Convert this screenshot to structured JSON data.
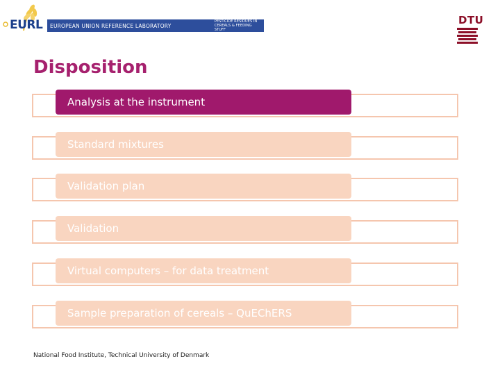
{
  "header": {
    "logo_text": "EURL",
    "banner_left": "EUROPEAN UNION REFERENCE LABORATORY",
    "banner_right_line1": "PESTICIDE RESIDUES IN",
    "banner_right_line2": "CEREALS & FEEDING STUFF",
    "dtu_text": "DTU"
  },
  "title": "Disposition",
  "items": [
    {
      "label": "Analysis at the instrument",
      "active": true
    },
    {
      "label": "Standard mixtures",
      "active": false
    },
    {
      "label": "Validation plan",
      "active": false
    },
    {
      "label": "Validation",
      "active": false
    },
    {
      "label": "Virtual computers – for data treatment",
      "active": false
    },
    {
      "label": "Sample preparation of cereals – QuEChERS",
      "active": false
    }
  ],
  "footer": "National Food Institute, Technical University of Denmark",
  "colors": {
    "accent": "#a0196c",
    "title": "#a6216e",
    "pill_inactive": "#f9d5c0",
    "outline": "#f5c6ae",
    "banner": "#2d4e9c"
  }
}
